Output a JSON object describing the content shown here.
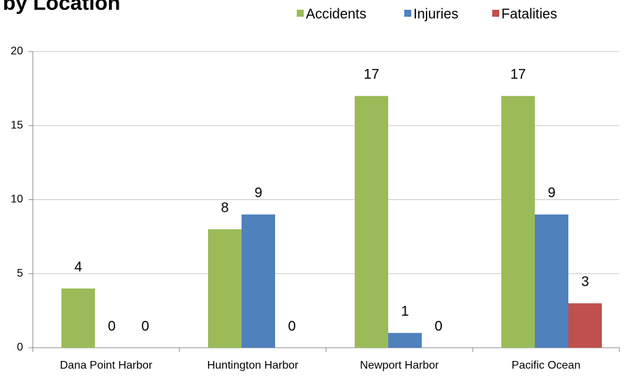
{
  "chart_data": {
    "type": "bar",
    "title": "by Location",
    "categories": [
      "Dana Point Harbor",
      "Huntington Harbor",
      "Newport Harbor",
      "Pacific Ocean"
    ],
    "series": [
      {
        "name": "Accidents",
        "color": "#9bbb59",
        "values": [
          4,
          8,
          17,
          17
        ]
      },
      {
        "name": "Injuries",
        "color": "#4f81bd",
        "values": [
          0,
          9,
          1,
          9
        ]
      },
      {
        "name": "Fatalities",
        "color": "#c0504d",
        "values": [
          0,
          0,
          0,
          3
        ]
      }
    ],
    "ylim": [
      0,
      20
    ],
    "yticks": [
      0,
      5,
      10,
      15,
      20
    ],
    "grid": true,
    "legend": "top"
  }
}
